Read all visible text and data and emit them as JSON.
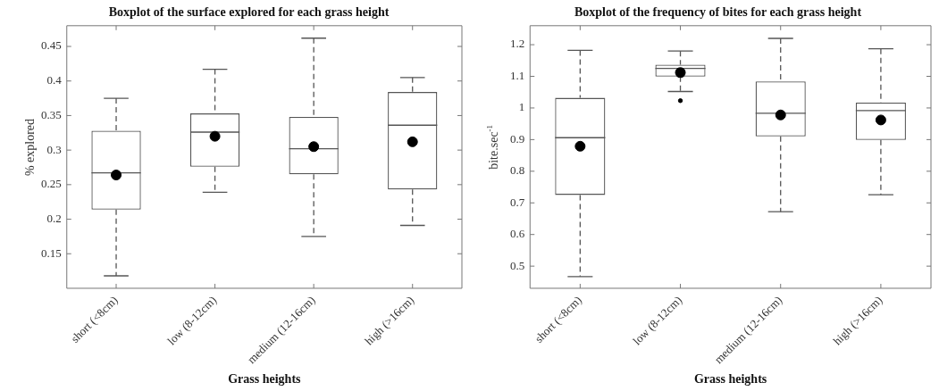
{
  "chart_data": [
    {
      "type": "box",
      "title": "Boxplot of the surface explored for each grass height",
      "xlabel": "Grass heights",
      "ylabel": "% explored",
      "categories": [
        "short (<8cm)",
        "low (8-12cm)",
        "medium (12-16cm)",
        "high (>16cm)"
      ],
      "ylim": [
        0.1,
        0.48
      ],
      "yticks": [
        0.15,
        0.2,
        0.25,
        0.3,
        0.35,
        0.4,
        0.45
      ],
      "grid": false,
      "legend": false,
      "boxes": [
        {
          "low": 0.118,
          "q1": 0.214,
          "median": 0.267,
          "q3": 0.328,
          "high": 0.375,
          "mean": 0.264
        },
        {
          "low": 0.239,
          "q1": 0.276,
          "median": 0.326,
          "q3": 0.353,
          "high": 0.417,
          "mean": 0.32
        },
        {
          "low": 0.175,
          "q1": 0.265,
          "median": 0.302,
          "q3": 0.348,
          "high": 0.462,
          "mean": 0.305
        },
        {
          "low": 0.191,
          "q1": 0.243,
          "median": 0.336,
          "q3": 0.384,
          "high": 0.405,
          "mean": 0.312
        }
      ]
    },
    {
      "type": "box",
      "title": "Boxplot of the frequency of bites for each grass height",
      "xlabel": "Grass heights",
      "ylabel": "bite.sec$^{-1}$",
      "categories": [
        "short (<8cm)",
        "low (8-12cm)",
        "medium (12-16cm)",
        "high (>16cm)"
      ],
      "ylim": [
        0.43,
        1.26
      ],
      "yticks": [
        0.5,
        0.6,
        0.7,
        0.8,
        0.9,
        1,
        1.1,
        1.2
      ],
      "grid": false,
      "legend": false,
      "boxes": [
        {
          "low": 0.467,
          "q1": 0.725,
          "median": 0.906,
          "q3": 1.032,
          "high": 1.182,
          "mean": 0.879
        },
        {
          "low": 1.052,
          "q1": 1.099,
          "median": 1.125,
          "q3": 1.137,
          "high": 1.18,
          "mean": 1.112,
          "outliers": [
            1.023
          ]
        },
        {
          "low": 0.672,
          "q1": 0.91,
          "median": 0.983,
          "q3": 1.084,
          "high": 1.22,
          "mean": 0.978
        },
        {
          "low": 0.726,
          "q1": 0.899,
          "median": 0.992,
          "q3": 1.017,
          "high": 1.187,
          "mean": 0.962
        }
      ]
    }
  ]
}
